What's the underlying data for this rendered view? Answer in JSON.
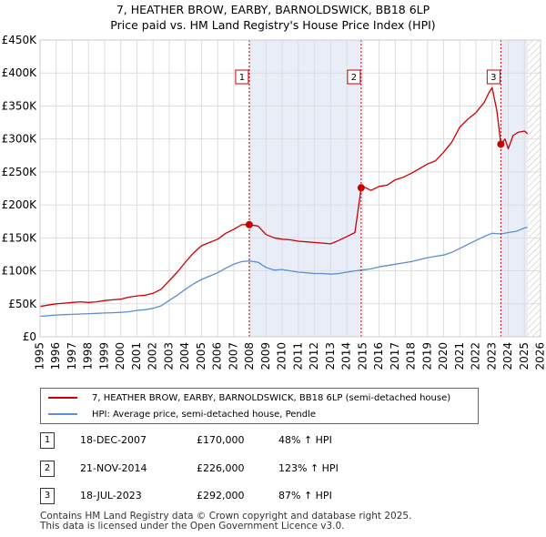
{
  "chart_data": {
    "type": "line",
    "title": "7, HEATHER BROW, EARBY, BARNOLDSWICK, BB18 6LP",
    "subtitle": "Price paid vs. HM Land Registry's House Price Index (HPI)",
    "ylim": [
      0,
      450000
    ],
    "xlim": [
      1995,
      2026
    ],
    "y_ticks": [
      0,
      50000,
      100000,
      150000,
      200000,
      250000,
      300000,
      350000,
      400000,
      450000
    ],
    "y_tick_labels": [
      "£0",
      "£50K",
      "£100K",
      "£150K",
      "£200K",
      "£250K",
      "£300K",
      "£350K",
      "£400K",
      "£450K"
    ],
    "x_ticks": [
      1995,
      1996,
      1997,
      1998,
      1999,
      2000,
      2001,
      2002,
      2003,
      2004,
      2005,
      2006,
      2007,
      2008,
      2009,
      2010,
      2011,
      2012,
      2013,
      2014,
      2015,
      2016,
      2017,
      2018,
      2019,
      2020,
      2021,
      2022,
      2023,
      2024,
      2025,
      2026
    ],
    "x_tick_labels": [
      "1995",
      "1996",
      "1997",
      "1998",
      "1999",
      "2000",
      "2001",
      "2002",
      "2003",
      "2004",
      "2005",
      "2006",
      "2007",
      "2008",
      "2009",
      "2010",
      "2011",
      "2012",
      "2013",
      "2014",
      "2015",
      "2016",
      "2017",
      "2018",
      "2019",
      "2020",
      "2021",
      "2022",
      "2023",
      "2024",
      "2025",
      "2026"
    ],
    "grid": true,
    "shaded_ranges": [
      [
        2007.96,
        2014.89
      ],
      [
        2023.54,
        2025.2
      ]
    ],
    "forecast_hatch_from": 2025.2,
    "series": [
      {
        "name": "7, HEATHER BROW, EARBY, BARNOLDSWICK, BB18 6LP (semi-detached house)",
        "color": "#cc0000",
        "x": [
          1995.0,
          1995.5,
          1996.0,
          1996.5,
          1997.0,
          1997.5,
          1998.0,
          1998.5,
          1999.0,
          1999.5,
          2000.0,
          2000.5,
          2001.0,
          2001.5,
          2002.0,
          2002.5,
          2003.0,
          2003.5,
          2004.0,
          2004.5,
          2005.0,
          2005.5,
          2006.0,
          2006.5,
          2007.0,
          2007.5,
          2007.96,
          2008.5,
          2009.0,
          2009.5,
          2010.0,
          2010.5,
          2011.0,
          2011.5,
          2012.0,
          2012.5,
          2013.0,
          2013.5,
          2014.0,
          2014.5,
          2014.89,
          2015.0,
          2015.5,
          2016.0,
          2016.5,
          2017.0,
          2017.5,
          2018.0,
          2018.5,
          2019.0,
          2019.5,
          2020.0,
          2020.5,
          2021.0,
          2021.5,
          2022.0,
          2022.5,
          2022.8,
          2023.0,
          2023.3,
          2023.54,
          2023.8,
          2024.0,
          2024.3,
          2024.6,
          2025.0,
          2025.2
        ],
        "values": [
          46000,
          48000,
          50000,
          51000,
          52000,
          53000,
          52000,
          53000,
          55000,
          56000,
          57000,
          60000,
          62000,
          63000,
          66000,
          72000,
          85000,
          98000,
          113000,
          127000,
          138000,
          143000,
          148000,
          157000,
          163000,
          170000,
          170000,
          168000,
          155000,
          150000,
          148000,
          147000,
          145000,
          144000,
          143000,
          142000,
          141000,
          146000,
          152000,
          158000,
          226000,
          228000,
          222000,
          228000,
          230000,
          238000,
          242000,
          248000,
          255000,
          262000,
          267000,
          280000,
          295000,
          318000,
          330000,
          340000,
          355000,
          370000,
          378000,
          342000,
          292000,
          300000,
          285000,
          305000,
          310000,
          312000,
          308000
        ]
      },
      {
        "name": "HPI: Average price, semi-detached house, Pendle",
        "color": "#5b8fcf",
        "x": [
          1995.0,
          1995.5,
          1996.0,
          1996.5,
          1997.0,
          1997.5,
          1998.0,
          1998.5,
          1999.0,
          1999.5,
          2000.0,
          2000.5,
          2001.0,
          2001.5,
          2002.0,
          2002.5,
          2003.0,
          2003.5,
          2004.0,
          2004.5,
          2005.0,
          2005.5,
          2006.0,
          2006.5,
          2007.0,
          2007.5,
          2007.96,
          2008.5,
          2009.0,
          2009.5,
          2010.0,
          2010.5,
          2011.0,
          2011.5,
          2012.0,
          2012.5,
          2013.0,
          2013.5,
          2014.0,
          2014.5,
          2014.89,
          2015.5,
          2016.0,
          2016.5,
          2017.0,
          2017.5,
          2018.0,
          2018.5,
          2019.0,
          2019.5,
          2020.0,
          2020.5,
          2021.0,
          2021.5,
          2022.0,
          2022.5,
          2023.0,
          2023.54,
          2024.0,
          2024.5,
          2025.0,
          2025.2
        ],
        "values": [
          31000,
          32000,
          33000,
          33500,
          34000,
          34500,
          35000,
          35500,
          36000,
          36500,
          37000,
          38000,
          40000,
          41000,
          43000,
          47000,
          55000,
          63000,
          72000,
          80000,
          87000,
          92000,
          97000,
          104000,
          110000,
          114000,
          115000,
          113000,
          105000,
          101000,
          102000,
          100000,
          98000,
          97000,
          96000,
          96000,
          95000,
          96000,
          98000,
          100000,
          101000,
          103000,
          106000,
          108000,
          110000,
          112000,
          114000,
          117000,
          120000,
          122000,
          124000,
          128000,
          134000,
          140000,
          146000,
          152000,
          157000,
          156000,
          158000,
          160000,
          165000,
          166000
        ]
      }
    ],
    "sales": [
      {
        "label": "1",
        "x": 2007.96,
        "value": 170000
      },
      {
        "label": "2",
        "x": 2014.89,
        "value": 226000
      },
      {
        "label": "3",
        "x": 2023.54,
        "value": 292000
      }
    ]
  },
  "legend": {
    "property_label": "7, HEATHER BROW, EARBY, BARNOLDSWICK, BB18 6LP (semi-detached house)",
    "hpi_label": "HPI: Average price, semi-detached house, Pendle"
  },
  "sales_table": [
    {
      "num": "1",
      "date": "18-DEC-2007",
      "price": "£170,000",
      "hpi": "48% ↑ HPI"
    },
    {
      "num": "2",
      "date": "21-NOV-2014",
      "price": "£226,000",
      "hpi": "123% ↑ HPI"
    },
    {
      "num": "3",
      "date": "18-JUL-2023",
      "price": "£292,000",
      "hpi": "87% ↑ HPI"
    }
  ],
  "footer": {
    "line1": "Contains HM Land Registry data © Crown copyright and database right 2025.",
    "line2": "This data is licensed under the Open Government Licence v3.0."
  }
}
